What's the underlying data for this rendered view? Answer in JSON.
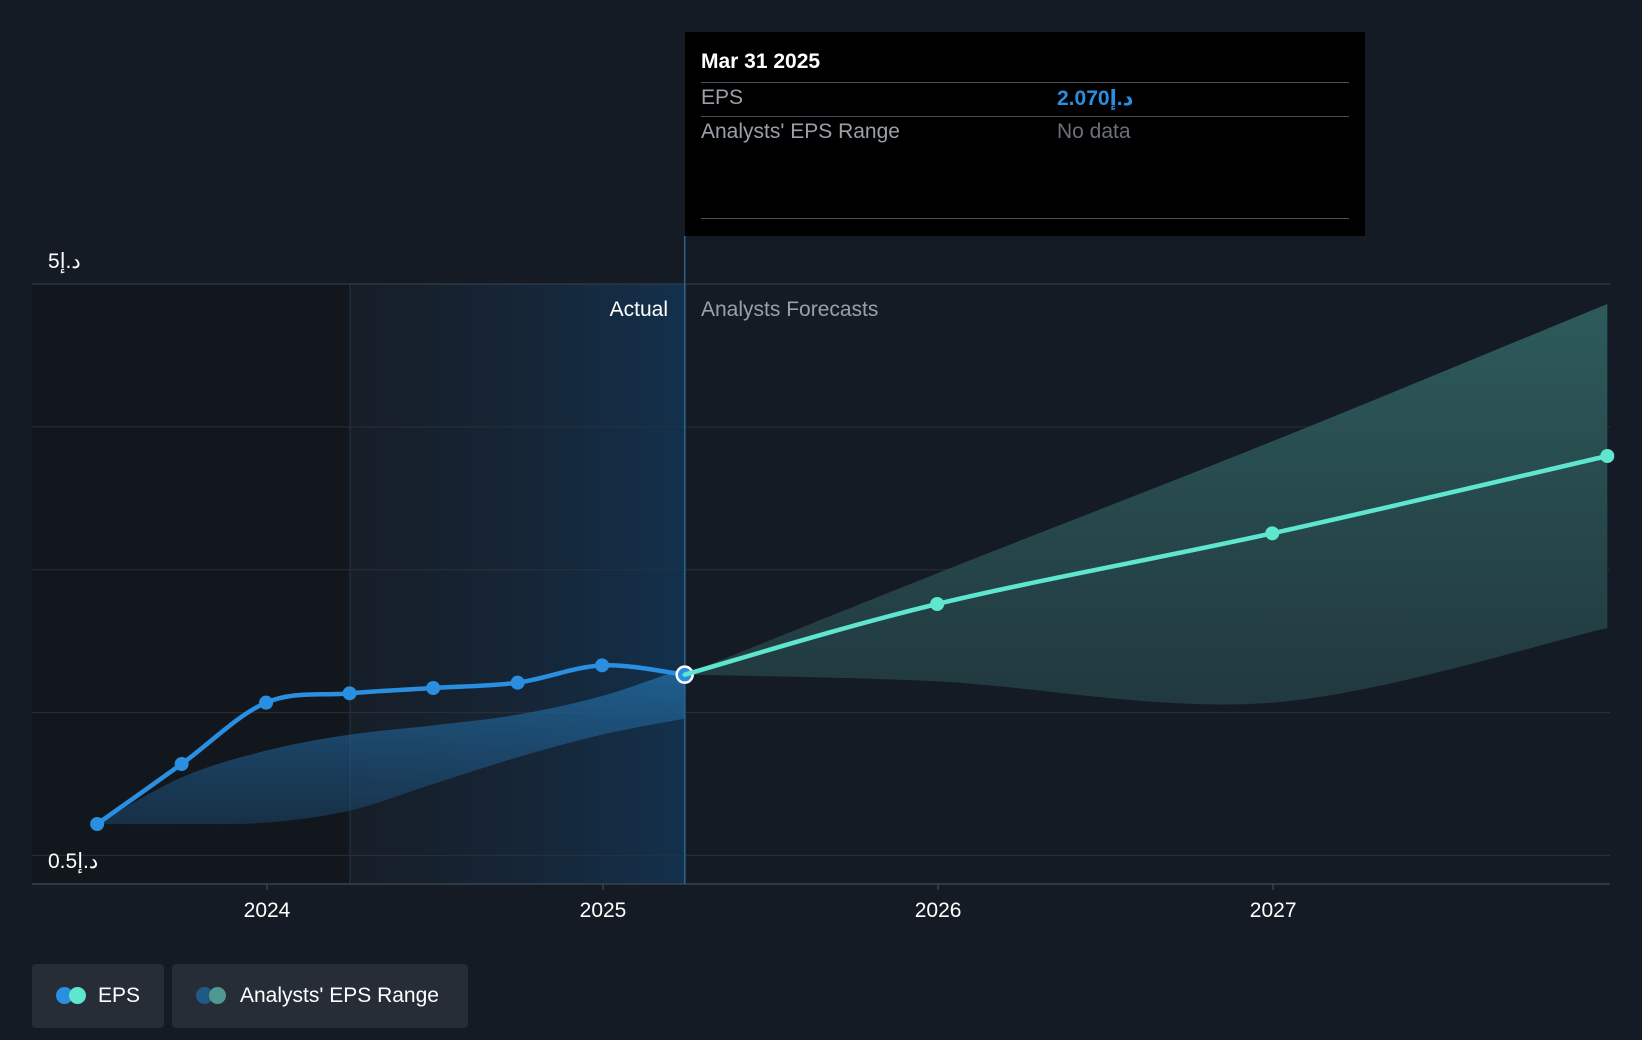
{
  "chart_data": {
    "type": "line",
    "title": "",
    "xlabel": "",
    "ylabel": "",
    "y_ticks": [
      {
        "value": 5,
        "label": "د.إ5"
      },
      {
        "value": 0.5,
        "label": "د.إ0.5"
      }
    ],
    "ylim": [
      0.5,
      5
    ],
    "x_ticks": [
      "2024",
      "2025",
      "2026",
      "2027"
    ],
    "grid": true,
    "regions": {
      "actual": "Actual",
      "forecast": "Analysts Forecasts"
    },
    "series": [
      {
        "name": "EPS",
        "segment": "actual",
        "color": "#2a8fe0",
        "points": [
          {
            "date": "2023-06-30",
            "value": 0.95
          },
          {
            "date": "2023-09-30",
            "value": 1.4
          },
          {
            "date": "2023-12-31",
            "value": 1.86
          },
          {
            "date": "2024-03-31",
            "value": 1.93
          },
          {
            "date": "2024-06-30",
            "value": 1.97
          },
          {
            "date": "2024-09-30",
            "value": 2.01
          },
          {
            "date": "2024-12-31",
            "value": 2.14
          },
          {
            "date": "2025-03-31",
            "value": 2.07
          }
        ]
      },
      {
        "name": "EPS",
        "segment": "forecast",
        "color": "#5ee6cf",
        "points": [
          {
            "date": "2025-03-31",
            "value": 2.07
          },
          {
            "date": "2025-12-31",
            "value": 2.6
          },
          {
            "date": "2026-12-31",
            "value": 3.13
          },
          {
            "date": "2027-12-31",
            "value": 3.71
          }
        ]
      }
    ],
    "range_actual": {
      "dates": [
        "2023-06-30",
        "2023-09-30",
        "2023-12-31",
        "2024-03-31",
        "2024-06-30",
        "2024-09-30",
        "2024-12-31",
        "2025-03-31"
      ],
      "low": [
        0.95,
        0.95,
        0.96,
        1.05,
        1.25,
        1.45,
        1.62,
        1.74
      ],
      "high": [
        0.95,
        1.3,
        1.5,
        1.62,
        1.69,
        1.77,
        1.91,
        2.12
      ]
    },
    "range_forecast": {
      "dates": [
        "2025-03-31",
        "2025-12-31",
        "2026-12-31",
        "2027-12-31"
      ],
      "low": [
        2.07,
        2.02,
        1.86,
        2.42
      ],
      "high": [
        2.07,
        2.83,
        3.82,
        4.85
      ]
    }
  },
  "tooltip": {
    "date": "Mar 31 2025",
    "eps_label": "EPS",
    "eps_value": "د.إ2.070",
    "range_label": "Analysts' EPS Range",
    "range_value": "No data"
  },
  "legend": {
    "items": [
      {
        "label": "EPS",
        "colors": [
          "#2a8fe0",
          "#5ee6cf"
        ]
      },
      {
        "label": "Analysts' EPS Range",
        "colors": [
          "#1f5a86",
          "#4f9a90"
        ]
      }
    ]
  }
}
